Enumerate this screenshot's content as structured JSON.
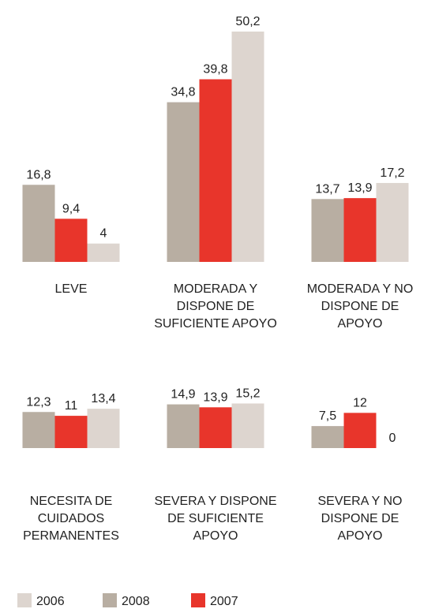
{
  "chart_data": [
    {
      "type": "bar",
      "categories": [
        "LEVE",
        "MODERADA Y DISPONE DE SUFICIENTE APOYO",
        "MODERADA Y NO DISPONE DE APOYO"
      ],
      "series": [
        {
          "name": "2008",
          "color": "#b8aea2",
          "values": [
            16.8,
            34.8,
            13.7
          ],
          "value_labels": [
            "16,8",
            "34,8",
            "13,7"
          ]
        },
        {
          "name": "2007",
          "color": "#e8352b",
          "values": [
            9.4,
            39.8,
            13.9
          ],
          "value_labels": [
            "9,4",
            "39,8",
            "13,9"
          ]
        },
        {
          "name": "2006",
          "color": "#ddd5cf",
          "values": [
            4,
            50.2,
            17.2
          ],
          "value_labels": [
            "4",
            "50,2",
            "17,2"
          ]
        }
      ],
      "ylim": [
        0,
        50.2
      ]
    },
    {
      "type": "bar",
      "categories": [
        "NECESITA DE CUIDADOS PERMANENTES",
        "SEVERA Y DISPONE DE SUFICIENTE APOYO",
        "SEVERA Y NO DISPONE DE APOYO"
      ],
      "series": [
        {
          "color": "#b8aea2",
          "values": [
            12.3,
            14.9,
            7.5
          ],
          "value_labels": [
            "12,3",
            "14,9",
            "7,5"
          ]
        },
        {
          "color": "#e8352b",
          "values": [
            11,
            13.9,
            12
          ],
          "value_labels": [
            "11",
            "13,9",
            "12"
          ]
        },
        {
          "color": "#ddd5cf",
          "values": [
            13.4,
            15.2,
            0
          ],
          "value_labels": [
            "13,4",
            "15,2",
            "0"
          ]
        }
      ],
      "ylim": [
        0,
        16
      ]
    }
  ]
}
